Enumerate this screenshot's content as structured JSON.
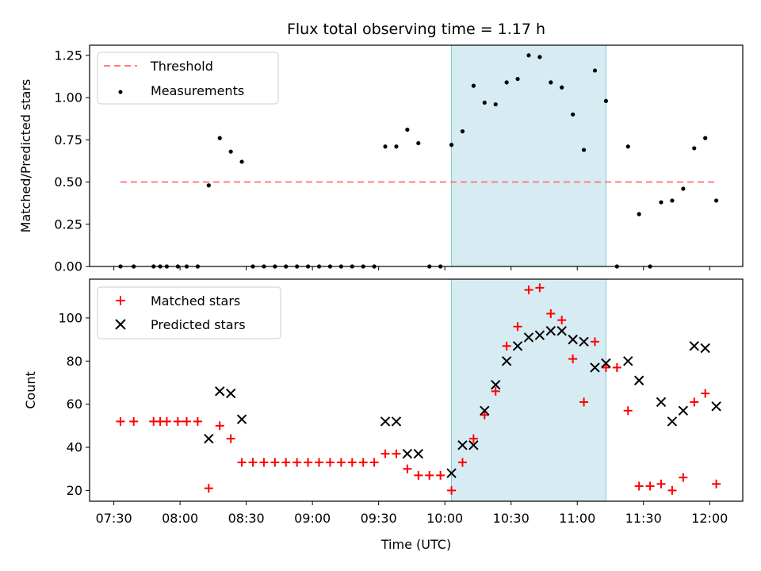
{
  "title": "Flux total observing time = 1.17 h",
  "xlabel": "Time (UTC)",
  "x_ticks": [
    "07:30",
    "08:00",
    "08:30",
    "09:00",
    "09:30",
    "10:00",
    "10:30",
    "11:00",
    "11:30",
    "12:00"
  ],
  "colors": {
    "threshold": "#ff7f7f",
    "measurements": "#000000",
    "matched": "#ff0000",
    "predicted": "#000000",
    "span_fill": "#add8e6"
  },
  "chart_data": [
    {
      "type": "scatter",
      "ylabel": "Matched/Predicted stars",
      "ylim": [
        0,
        1.31
      ],
      "yticks": [
        0.0,
        0.25,
        0.5,
        0.75,
        1.0,
        1.25
      ],
      "ytick_labels": [
        "0.00",
        "0.25",
        "0.50",
        "0.75",
        "1.00",
        "1.25"
      ],
      "xlim": [
        "07:19",
        "12:15"
      ],
      "highlight_span": [
        "10:03",
        "11:13"
      ],
      "legend": {
        "placement": "top-left",
        "entries": [
          "Threshold",
          "Measurements"
        ]
      },
      "threshold": {
        "name": "Threshold",
        "x": [
          "07:33",
          "12:03"
        ],
        "y": 0.5
      },
      "series": [
        {
          "name": "Measurements",
          "x": [
            "07:33",
            "07:39",
            "07:48",
            "07:51",
            "07:54",
            "07:59",
            "08:03",
            "08:08",
            "08:13",
            "08:18",
            "08:23",
            "08:28",
            "08:33",
            "08:38",
            "08:43",
            "08:48",
            "08:53",
            "08:58",
            "09:03",
            "09:08",
            "09:13",
            "09:18",
            "09:23",
            "09:28",
            "09:33",
            "09:38",
            "09:43",
            "09:48",
            "09:53",
            "09:58",
            "10:03",
            "10:08",
            "10:13",
            "10:18",
            "10:23",
            "10:28",
            "10:33",
            "10:38",
            "10:43",
            "10:48",
            "10:53",
            "10:58",
            "11:03",
            "11:08",
            "11:13",
            "11:18",
            "11:23",
            "11:28",
            "11:33",
            "11:38",
            "11:43",
            "11:48",
            "11:53",
            "11:58",
            "12:03"
          ],
          "y": [
            0,
            0,
            0,
            0,
            0,
            0,
            0,
            0,
            0.48,
            0.76,
            0.68,
            0.62,
            0,
            0,
            0,
            0,
            0,
            0,
            0,
            0,
            0,
            0,
            0,
            0,
            0.71,
            0.71,
            0.81,
            0.73,
            0,
            0,
            0.72,
            0.8,
            1.07,
            0.97,
            0.96,
            1.09,
            1.11,
            1.25,
            1.24,
            1.09,
            1.06,
            0.9,
            0.69,
            1.16,
            0.98,
            0,
            0.71,
            0.31,
            0,
            0.38,
            0.39,
            0.46,
            0.7,
            0.76,
            0.39
          ]
        }
      ]
    },
    {
      "type": "scatter",
      "ylabel": "Count",
      "ylim": [
        15,
        118
      ],
      "yticks": [
        20,
        40,
        60,
        80,
        100
      ],
      "ytick_labels": [
        "20",
        "40",
        "60",
        "80",
        "100"
      ],
      "xlim": [
        "07:19",
        "12:15"
      ],
      "highlight_span": [
        "10:03",
        "11:13"
      ],
      "legend": {
        "placement": "top-left",
        "entries": [
          "Matched stars",
          "Predicted stars"
        ]
      },
      "series": [
        {
          "name": "Matched stars",
          "marker": "plus",
          "x": [
            "07:33",
            "07:39",
            "07:48",
            "07:51",
            "07:54",
            "07:59",
            "08:03",
            "08:08",
            "08:13",
            "08:18",
            "08:23",
            "08:28",
            "08:33",
            "08:38",
            "08:43",
            "08:48",
            "08:53",
            "08:58",
            "09:03",
            "09:08",
            "09:13",
            "09:18",
            "09:23",
            "09:28",
            "09:33",
            "09:38",
            "09:43",
            "09:48",
            "09:53",
            "09:58",
            "10:03",
            "10:08",
            "10:13",
            "10:18",
            "10:23",
            "10:28",
            "10:33",
            "10:38",
            "10:43",
            "10:48",
            "10:53",
            "10:58",
            "11:03",
            "11:08",
            "11:13",
            "11:18",
            "11:23",
            "11:28",
            "11:33",
            "11:38",
            "11:43",
            "11:48",
            "11:53",
            "11:58",
            "12:03"
          ],
          "y": [
            52,
            52,
            52,
            52,
            52,
            52,
            52,
            52,
            21,
            50,
            44,
            33,
            33,
            33,
            33,
            33,
            33,
            33,
            33,
            33,
            33,
            33,
            33,
            33,
            37,
            37,
            30,
            27,
            27,
            27,
            20,
            33,
            44,
            55,
            66,
            87,
            96,
            113,
            114,
            102,
            99,
            81,
            61,
            89,
            77,
            77,
            57,
            22,
            22,
            23,
            20,
            26,
            61,
            65,
            23
          ]
        },
        {
          "name": "Predicted stars",
          "marker": "x",
          "x": [
            "08:13",
            "08:18",
            "08:23",
            "08:28",
            "09:33",
            "09:38",
            "09:43",
            "09:48",
            "10:03",
            "10:08",
            "10:13",
            "10:18",
            "10:23",
            "10:28",
            "10:33",
            "10:38",
            "10:43",
            "10:48",
            "10:53",
            "10:58",
            "11:03",
            "11:08",
            "11:13",
            "11:23",
            "11:28",
            "11:38",
            "11:43",
            "11:48",
            "11:53",
            "11:58",
            "12:03"
          ],
          "y": [
            44,
            66,
            65,
            53,
            52,
            52,
            37,
            37,
            28,
            41,
            41,
            57,
            69,
            80,
            87,
            91,
            92,
            94,
            94,
            90,
            89,
            77,
            79,
            80,
            71,
            61,
            52,
            57,
            87,
            86,
            59
          ]
        }
      ]
    }
  ]
}
